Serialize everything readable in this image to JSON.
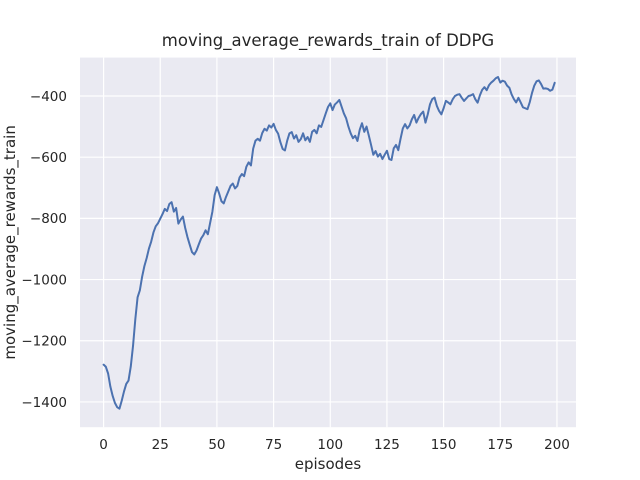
{
  "title": "moving_average_rewards_train of DDPG",
  "colors": {
    "figure_bg": "#ffffff",
    "axes_bg": "#eaeaf2",
    "grid": "#ffffff",
    "line": "#4c72b0",
    "text": "#262626"
  },
  "chart_data": {
    "type": "line",
    "title": "moving_average_rewards_train of DDPG",
    "xlabel": "episodes",
    "ylabel": "moving_average_rewards_train",
    "legend": null,
    "grid": true,
    "x_ticks": [
      0,
      25,
      50,
      75,
      100,
      125,
      150,
      175,
      200
    ],
    "y_ticks": [
      -400,
      -600,
      -800,
      -1000,
      -1200,
      -1400
    ],
    "xlim": [
      -10.4,
      208.4
    ],
    "ylim": [
      -1482.5,
      -274.5
    ],
    "series": [
      {
        "name": "moving average rewards (train), DDPG",
        "x": [
          0,
          1,
          2,
          3,
          4,
          5,
          6,
          7,
          8,
          9,
          10,
          11,
          12,
          13,
          14,
          15,
          16,
          17,
          18,
          19,
          20,
          21,
          22,
          23,
          24,
          25,
          26,
          27,
          28,
          29,
          30,
          31,
          32,
          33,
          34,
          35,
          36,
          37,
          38,
          39,
          40,
          41,
          42,
          43,
          44,
          45,
          46,
          47,
          48,
          49,
          50,
          51,
          52,
          53,
          54,
          55,
          56,
          57,
          58,
          59,
          60,
          61,
          62,
          63,
          64,
          65,
          66,
          67,
          68,
          69,
          70,
          71,
          72,
          73,
          74,
          75,
          76,
          77,
          78,
          79,
          80,
          81,
          82,
          83,
          84,
          85,
          86,
          87,
          88,
          89,
          90,
          91,
          92,
          93,
          94,
          95,
          96,
          97,
          98,
          99,
          100,
          101,
          102,
          103,
          104,
          105,
          106,
          107,
          108,
          109,
          110,
          111,
          112,
          113,
          114,
          115,
          116,
          117,
          118,
          119,
          120,
          121,
          122,
          123,
          124,
          125,
          126,
          127,
          128,
          129,
          130,
          131,
          132,
          133,
          134,
          135,
          136,
          137,
          138,
          139,
          140,
          141,
          142,
          143,
          144,
          145,
          146,
          147,
          148,
          149,
          150,
          151,
          152,
          153,
          154,
          155,
          156,
          157,
          158,
          159,
          160,
          161,
          162,
          163,
          164,
          165,
          166,
          167,
          168,
          169,
          170,
          171,
          172,
          173,
          174,
          175,
          176,
          177,
          178,
          179,
          180,
          181,
          182,
          183,
          184,
          185,
          186,
          187,
          188,
          189,
          190,
          191,
          192,
          193,
          194,
          195,
          196,
          197,
          198,
          199
        ],
        "values": [
          -1278,
          -1285,
          -1307,
          -1350,
          -1380,
          -1403,
          -1417,
          -1422,
          -1396,
          -1366,
          -1341,
          -1330,
          -1284,
          -1216,
          -1130,
          -1058,
          -1035,
          -991,
          -956,
          -930,
          -899,
          -876,
          -846,
          -826,
          -816,
          -801,
          -786,
          -769,
          -776,
          -753,
          -747,
          -778,
          -766,
          -817,
          -804,
          -794,
          -831,
          -861,
          -886,
          -910,
          -918,
          -905,
          -885,
          -866,
          -855,
          -839,
          -852,
          -815,
          -778,
          -724,
          -698,
          -719,
          -744,
          -751,
          -730,
          -712,
          -694,
          -686,
          -702,
          -694,
          -666,
          -655,
          -662,
          -631,
          -617,
          -627,
          -572,
          -546,
          -540,
          -546,
          -521,
          -507,
          -513,
          -496,
          -503,
          -491,
          -511,
          -523,
          -551,
          -573,
          -578,
          -546,
          -522,
          -518,
          -539,
          -528,
          -550,
          -541,
          -522,
          -545,
          -534,
          -550,
          -517,
          -511,
          -522,
          -496,
          -501,
          -479,
          -457,
          -436,
          -424,
          -446,
          -428,
          -421,
          -413,
          -435,
          -457,
          -473,
          -500,
          -522,
          -538,
          -530,
          -547,
          -510,
          -489,
          -517,
          -500,
          -529,
          -560,
          -592,
          -580,
          -598,
          -589,
          -606,
          -592,
          -579,
          -606,
          -609,
          -571,
          -560,
          -577,
          -540,
          -506,
          -492,
          -506,
          -496,
          -476,
          -462,
          -487,
          -471,
          -459,
          -451,
          -487,
          -460,
          -427,
          -410,
          -405,
          -432,
          -449,
          -460,
          -440,
          -416,
          -421,
          -427,
          -411,
          -400,
          -396,
          -394,
          -406,
          -416,
          -408,
          -400,
          -398,
          -394,
          -411,
          -422,
          -398,
          -380,
          -371,
          -381,
          -365,
          -356,
          -350,
          -342,
          -338,
          -356,
          -350,
          -353,
          -366,
          -373,
          -395,
          -410,
          -421,
          -406,
          -421,
          -437,
          -440,
          -443,
          -420,
          -390,
          -366,
          -352,
          -349,
          -361,
          -376,
          -375,
          -377,
          -383,
          -379,
          -357
        ]
      }
    ]
  }
}
